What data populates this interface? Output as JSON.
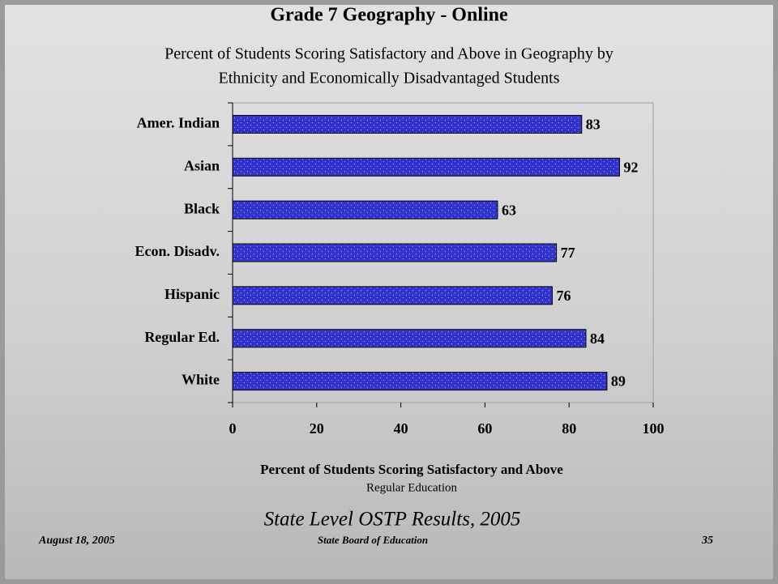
{
  "chart_data": {
    "type": "bar",
    "orientation": "horizontal",
    "title": "Grade 7 Geography - Online",
    "subtitle": [
      "Percent of Students Scoring Satisfactory and Above in Geography by",
      "Ethnicity and Economically Disadvantaged Students"
    ],
    "categories": [
      "Amer. Indian",
      "Asian",
      "Black",
      "Econ. Disadv.",
      "Hispanic",
      "Regular Ed.",
      "White"
    ],
    "values": [
      83,
      92,
      63,
      77,
      76,
      84,
      89
    ],
    "color": "#3333cc",
    "xlim": [
      0,
      100
    ],
    "xticks": [
      0,
      20,
      40,
      60,
      80,
      100
    ],
    "x_label": "Percent of Students Scoring Satisfactory and Above",
    "x_sublabel": "Regular Education",
    "grid": false
  },
  "footer": {
    "heading": "State Level OSTP Results, 2005",
    "date": "August 18, 2005",
    "source": "State Board of Education",
    "page": "35"
  }
}
